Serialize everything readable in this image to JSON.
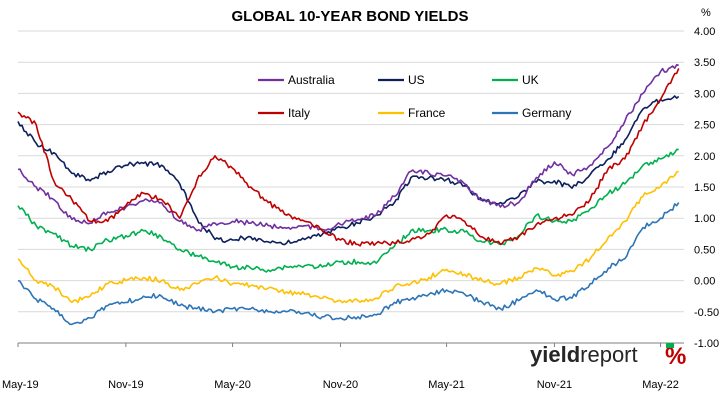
{
  "chart_data": {
    "type": "line",
    "title": "GLOBAL 10-YEAR BOND YIELDS",
    "ylabel": "%",
    "xlabel": "",
    "ylim": [
      -1.0,
      4.0
    ],
    "y_ticks": [
      "4.00",
      "3.50",
      "3.00",
      "2.50",
      "2.00",
      "1.50",
      "1.00",
      "0.50",
      "0.00",
      "-0.50",
      "-1.00"
    ],
    "y_tick_values": [
      4.0,
      3.5,
      3.0,
      2.5,
      2.0,
      1.5,
      1.0,
      0.5,
      0.0,
      -0.5,
      -1.0
    ],
    "x_ticks": [
      "May-19",
      "Nov-19",
      "May-20",
      "Nov-20",
      "May-21",
      "Nov-21",
      "May-22"
    ],
    "grid": "horizontal",
    "legend_position": "top-center",
    "x": [
      "2019-05-01",
      "2019-06-01",
      "2019-07-01",
      "2019-08-01",
      "2019-09-01",
      "2019-10-01",
      "2019-11-01",
      "2019-12-01",
      "2020-01-01",
      "2020-02-01",
      "2020-03-01",
      "2020-04-01",
      "2020-05-01",
      "2020-06-01",
      "2020-07-01",
      "2020-08-01",
      "2020-09-01",
      "2020-10-01",
      "2020-11-01",
      "2020-12-01",
      "2021-01-01",
      "2021-02-01",
      "2021-03-01",
      "2021-04-01",
      "2021-05-01",
      "2021-06-01",
      "2021-07-01",
      "2021-08-01",
      "2021-09-01",
      "2021-10-01",
      "2021-11-01",
      "2021-12-01",
      "2022-01-01",
      "2022-02-01",
      "2022-03-01",
      "2022-04-01",
      "2022-05-01",
      "2022-06-01"
    ],
    "series": [
      {
        "name": "Australia",
        "color": "#7030a0",
        "values": [
          1.78,
          1.5,
          1.3,
          0.98,
          0.92,
          1.1,
          1.18,
          1.28,
          1.25,
          0.95,
          0.8,
          0.92,
          0.95,
          0.92,
          0.88,
          0.84,
          0.88,
          0.82,
          0.9,
          0.98,
          1.05,
          1.35,
          1.75,
          1.72,
          1.68,
          1.55,
          1.3,
          1.18,
          1.25,
          1.65,
          1.9,
          1.7,
          1.85,
          2.15,
          2.55,
          3.0,
          3.35,
          3.45
        ]
      },
      {
        "name": "US",
        "color": "#0d1f5c",
        "values": [
          2.55,
          2.2,
          2.05,
          1.72,
          1.6,
          1.75,
          1.85,
          1.88,
          1.85,
          1.55,
          1.0,
          0.66,
          0.65,
          0.7,
          0.62,
          0.6,
          0.66,
          0.74,
          0.85,
          0.92,
          1.05,
          1.25,
          1.65,
          1.65,
          1.62,
          1.52,
          1.28,
          1.25,
          1.35,
          1.58,
          1.6,
          1.48,
          1.7,
          1.95,
          2.25,
          2.75,
          2.9,
          2.95
        ]
      },
      {
        "name": "UK",
        "color": "#00b050",
        "values": [
          1.2,
          0.88,
          0.75,
          0.55,
          0.5,
          0.65,
          0.72,
          0.8,
          0.7,
          0.5,
          0.4,
          0.3,
          0.22,
          0.2,
          0.17,
          0.22,
          0.24,
          0.22,
          0.3,
          0.3,
          0.28,
          0.55,
          0.8,
          0.8,
          0.82,
          0.78,
          0.62,
          0.58,
          0.72,
          1.05,
          0.95,
          0.95,
          1.15,
          1.4,
          1.55,
          1.85,
          1.95,
          2.1
        ]
      },
      {
        "name": "Italy",
        "color": "#c00000",
        "values": [
          2.7,
          2.5,
          1.6,
          1.3,
          0.95,
          0.95,
          1.2,
          1.4,
          1.3,
          1.0,
          1.6,
          2.0,
          1.8,
          1.5,
          1.25,
          1.05,
          0.95,
          0.8,
          0.65,
          0.58,
          0.6,
          0.6,
          0.65,
          0.75,
          1.05,
          0.95,
          0.7,
          0.58,
          0.7,
          0.9,
          1.0,
          1.05,
          1.3,
          1.8,
          1.95,
          2.5,
          2.9,
          3.4
        ]
      },
      {
        "name": "France",
        "color": "#ffc000",
        "values": [
          0.35,
          0.0,
          -0.1,
          -0.35,
          -0.25,
          -0.05,
          0.0,
          0.05,
          0.0,
          -0.15,
          -0.05,
          0.05,
          -0.05,
          -0.08,
          -0.12,
          -0.18,
          -0.22,
          -0.28,
          -0.32,
          -0.32,
          -0.28,
          -0.1,
          -0.05,
          0.05,
          0.18,
          0.1,
          0.0,
          -0.05,
          0.05,
          0.2,
          0.08,
          0.15,
          0.35,
          0.7,
          0.95,
          1.35,
          1.5,
          1.75
        ]
      },
      {
        "name": "Germany",
        "color": "#2e75b6",
        "values": [
          0.0,
          -0.3,
          -0.45,
          -0.7,
          -0.6,
          -0.4,
          -0.35,
          -0.25,
          -0.25,
          -0.4,
          -0.45,
          -0.5,
          -0.45,
          -0.45,
          -0.5,
          -0.5,
          -0.52,
          -0.58,
          -0.6,
          -0.58,
          -0.55,
          -0.35,
          -0.3,
          -0.22,
          -0.15,
          -0.22,
          -0.35,
          -0.45,
          -0.32,
          -0.15,
          -0.3,
          -0.28,
          -0.05,
          0.2,
          0.35,
          0.85,
          1.0,
          1.25
        ]
      }
    ]
  },
  "logo": {
    "word_bold": "yield",
    "word_regular": "report",
    "symbol": "%"
  }
}
